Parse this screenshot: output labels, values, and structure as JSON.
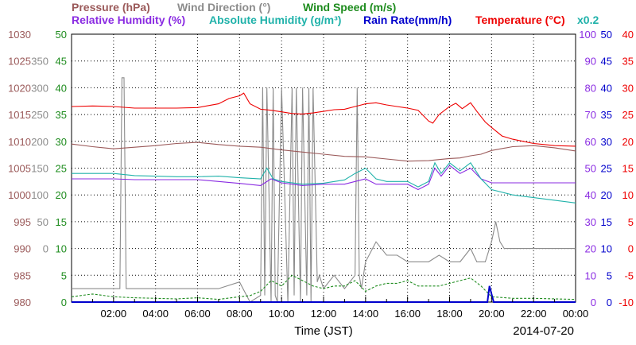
{
  "chart_data": {
    "type": "line",
    "date_label": "2014-07-20",
    "xlabel": "Time (JST)",
    "x_ticks": [
      "02:00",
      "04:00",
      "06:00",
      "08:00",
      "10:00",
      "12:00",
      "14:00",
      "16:00",
      "18:00",
      "20:00",
      "22:00",
      "00:00"
    ],
    "x_range_hours": [
      0,
      24
    ],
    "grid": true,
    "legend_row1": [
      {
        "text": "Pressure (hPa)",
        "color": "#9b5a5a"
      },
      {
        "text": "Wind Direction (°)",
        "color": "#8c8c8c"
      },
      {
        "text": "Wind Speed (m/s)",
        "color": "#1e8c1e"
      }
    ],
    "legend_row2": [
      {
        "text": "Relative Humidity (%)",
        "color": "#8a2be2"
      },
      {
        "text": "Absolute Humidity (g/m³)",
        "color": "#20b2aa"
      },
      {
        "text": "Rain Rate(mm/h)",
        "color": "#0000cc"
      },
      {
        "text": "Temperature (°C)",
        "color": "#ee0000"
      }
    ],
    "scale_note": {
      "text": "x0.2",
      "color": "#20b2aa"
    },
    "axes": {
      "pressure": {
        "color": "#9b5a5a",
        "ticks": [
          "1030",
          "1025",
          "1020",
          "1015",
          "1010",
          "1005",
          "1000",
          "995",
          "990",
          "985",
          "980"
        ],
        "range": [
          980,
          1030
        ]
      },
      "wind_direction": {
        "color": "#8c8c8c",
        "ticks": [
          "350",
          "300",
          "250",
          "200",
          "150",
          "100",
          "50",
          "0"
        ],
        "range": [
          0,
          400
        ]
      },
      "wind_speed": {
        "color": "#1e8c1e",
        "ticks": [
          "50",
          "45",
          "40",
          "35",
          "30",
          "25",
          "20",
          "15",
          "10",
          "5",
          "0"
        ],
        "range": [
          0,
          50
        ]
      },
      "humidity": {
        "color": "#8a2be2",
        "ticks": [
          "100",
          "90",
          "80",
          "70",
          "60",
          "50",
          "40",
          "30",
          "20",
          "10",
          "0"
        ],
        "range": [
          0,
          100
        ]
      },
      "rain_rate": {
        "color": "#0000cc",
        "ticks": [
          "50",
          "45",
          "40",
          "35",
          "30",
          "25",
          "20",
          "15",
          "10",
          "5",
          "0"
        ],
        "range": [
          0,
          50
        ]
      },
      "temperature": {
        "color": "#ee0000",
        "ticks": [
          "40",
          "35",
          "30",
          "25",
          "20",
          "15",
          "10",
          "5",
          "0",
          "-5",
          "-10"
        ],
        "range": [
          -10,
          40
        ]
      }
    },
    "series": [
      {
        "name": "Temperature (°C)",
        "color": "#ee0000",
        "axis": "temperature",
        "x": [
          0,
          1,
          2,
          3,
          4,
          5,
          6,
          7,
          7.5,
          8,
          8.2,
          8.5,
          9,
          9.5,
          10,
          10.5,
          11,
          11.5,
          12,
          12.5,
          13,
          13.5,
          13.8,
          14,
          14.5,
          15,
          15.5,
          16,
          16.5,
          17,
          17.2,
          17.5,
          18,
          18.3,
          18.6,
          19,
          19.3,
          19.7,
          20,
          20.5,
          21,
          21.5,
          22,
          22.5,
          23,
          24
        ],
        "y": [
          26.5,
          26.6,
          26.5,
          26.2,
          26.2,
          26.2,
          26.3,
          27,
          28,
          28.5,
          29,
          27,
          26,
          25.8,
          25.5,
          25.2,
          25.1,
          25.3,
          25.6,
          25.9,
          26,
          26.5,
          26.8,
          27,
          27.2,
          26.8,
          26.5,
          26.2,
          25.8,
          23.8,
          23.4,
          25,
          26.5,
          27.1,
          26.1,
          27.2,
          25.6,
          23.6,
          22.6,
          21,
          20.4,
          20,
          19.6,
          19.4,
          19.2,
          19.1
        ]
      },
      {
        "name": "Pressure (hPa)",
        "color": "#9b5a5a",
        "axis": "pressure",
        "x": [
          0,
          1,
          2,
          3,
          4,
          5,
          6,
          7,
          8,
          9,
          10,
          11,
          12,
          13,
          14,
          15,
          16,
          17,
          17.5,
          18,
          18.5,
          19,
          19.5,
          20,
          21,
          22,
          23,
          24
        ],
        "y": [
          1009.5,
          1009,
          1008.6,
          1008.9,
          1009.2,
          1009.6,
          1009.8,
          1009.4,
          1009.1,
          1008.9,
          1008.4,
          1008,
          1007.6,
          1007.2,
          1007.1,
          1006.7,
          1006.3,
          1006.4,
          1006.6,
          1006.8,
          1006.9,
          1007.3,
          1007.6,
          1008.3,
          1009,
          1009.2,
          1008.8,
          1008.2
        ]
      },
      {
        "name": "Relative Humidity (%)",
        "color": "#8a2be2",
        "axis": "humidity",
        "x": [
          0,
          1,
          2,
          3,
          4,
          5,
          6,
          7,
          8,
          9,
          9.5,
          10,
          11,
          12,
          13,
          13.5,
          14,
          14.5,
          15,
          16,
          16.5,
          17,
          17.3,
          17.6,
          18,
          18.5,
          19,
          19.5,
          20,
          21,
          22,
          23,
          24
        ],
        "y": [
          46,
          46,
          46,
          45.7,
          45.7,
          45.7,
          45.7,
          45,
          44.3,
          43.5,
          46,
          44.5,
          43.5,
          44,
          44,
          45,
          46,
          44,
          44,
          44,
          42,
          44,
          50,
          47,
          51,
          48,
          50,
          46,
          44.5,
          44.5,
          44.5,
          44.5,
          44.5
        ]
      },
      {
        "name": "Absolute Humidity (g/m³)",
        "color": "#20b2aa",
        "axis": "rain_rate",
        "x": [
          0,
          1,
          2,
          3,
          4,
          5,
          6,
          7,
          8,
          9,
          9.3,
          9.6,
          10,
          11,
          12,
          13,
          13.5,
          14,
          14.5,
          15,
          16,
          16.5,
          17,
          17.3,
          17.6,
          18,
          18.5,
          19,
          19.5,
          20,
          21,
          22,
          23,
          24
        ],
        "y": [
          24,
          24,
          24,
          23.6,
          23.5,
          23.4,
          23.4,
          23.5,
          23.2,
          23,
          25,
          23,
          22.5,
          22,
          22.2,
          22.8,
          24,
          25,
          23,
          22.5,
          22.5,
          21.5,
          22.5,
          26,
          24,
          26,
          24.5,
          26,
          23,
          21,
          20,
          19.5,
          19,
          18.5
        ]
      },
      {
        "name": "Wind Direction (°)",
        "color": "#8c8c8c",
        "axis": "wind_direction",
        "x": [
          0,
          2,
          2.3,
          2.4,
          2.5,
          2.6,
          3.5,
          5,
          7,
          8,
          8.5,
          9,
          9.1,
          9.2,
          9.3,
          9.5,
          9.6,
          9.7,
          9.8,
          10,
          10.3,
          10.5,
          10.6,
          10.7,
          10.9,
          11,
          11.2,
          11.3,
          11.4,
          11.5,
          11.7,
          11.8,
          12,
          12.5,
          13,
          13.5,
          13.6,
          13.7,
          13.8,
          14,
          14.5,
          15,
          15.5,
          16,
          16.5,
          17,
          17.5,
          18,
          18.5,
          19,
          19.3,
          19.5,
          19.7,
          20,
          20.2,
          20.4,
          20.6,
          21,
          22,
          23,
          24
        ],
        "y": [
          20,
          20,
          20,
          335,
          335,
          20,
          20,
          20,
          20,
          30,
          0,
          10,
          320,
          10,
          320,
          0,
          320,
          10,
          0,
          320,
          0,
          320,
          10,
          320,
          0,
          320,
          10,
          320,
          0,
          320,
          30,
          40,
          20,
          40,
          20,
          40,
          320,
          40,
          20,
          60,
          90,
          70,
          70,
          60,
          60,
          60,
          70,
          60,
          60,
          80,
          60,
          60,
          60,
          90,
          120,
          90,
          80,
          80,
          80,
          80,
          80
        ]
      },
      {
        "name": "Wind Speed (m/s)",
        "color": "#1e8c1e",
        "axis": "wind_speed",
        "x": [
          0,
          1,
          2,
          3,
          4,
          5,
          6,
          7,
          8,
          8.5,
          9,
          9.5,
          10,
          10.5,
          11,
          11.5,
          12,
          12.5,
          13,
          13.5,
          14,
          14.5,
          15,
          15.5,
          16,
          16.5,
          17,
          17.5,
          18,
          18.5,
          19,
          19.5,
          20,
          21,
          22,
          23,
          24
        ],
        "y": [
          1,
          1.5,
          1,
          0.8,
          0.7,
          0.6,
          0.8,
          0.5,
          1,
          1.2,
          2,
          4,
          3,
          5,
          4,
          3,
          2.5,
          3,
          3,
          4,
          2,
          3,
          3.5,
          3.5,
          4,
          3,
          3,
          3,
          3.5,
          4,
          4.5,
          3,
          1,
          0.7,
          0.7,
          0.6,
          0.5
        ]
      },
      {
        "name": "Rain Rate(mm/h)",
        "color": "#0000cc",
        "axis": "rain_rate",
        "x": [
          0,
          19.8,
          19.9,
          20,
          20.1,
          24
        ],
        "y": [
          0,
          0,
          3,
          1.5,
          0,
          0
        ]
      }
    ]
  }
}
